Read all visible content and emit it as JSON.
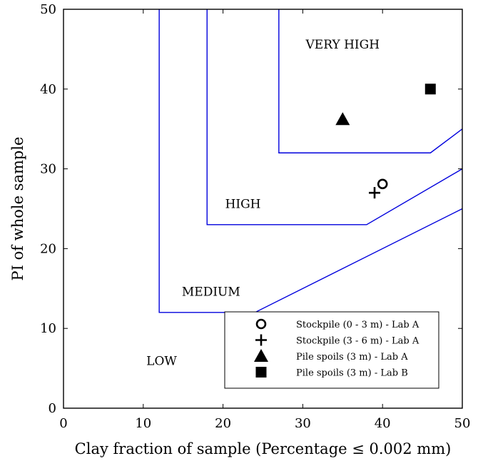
{
  "chart_data": {
    "type": "scatter",
    "title": "",
    "xlabel": "Clay fraction of sample (Percentage ≤ 0.002 mm)",
    "ylabel": "PI of whole sample",
    "xlim": [
      0,
      50
    ],
    "ylim": [
      0,
      50
    ],
    "xticks": [
      0,
      10,
      20,
      30,
      40,
      50
    ],
    "yticks": [
      0,
      10,
      20,
      30,
      40,
      50
    ],
    "grid": false,
    "boundary_color": "#0000dd",
    "boundaries": [
      {
        "name": "low-medium",
        "points": [
          [
            12,
            50
          ],
          [
            12,
            12
          ],
          [
            24,
            12
          ],
          [
            50,
            25
          ]
        ]
      },
      {
        "name": "medium-high",
        "points": [
          [
            18,
            50
          ],
          [
            18,
            23
          ],
          [
            38,
            23
          ],
          [
            50,
            30
          ]
        ]
      },
      {
        "name": "high-very-high",
        "points": [
          [
            27,
            50
          ],
          [
            27,
            32
          ],
          [
            46,
            32
          ],
          [
            50,
            35
          ]
        ]
      }
    ],
    "regions": [
      {
        "label": "VERY HIGH",
        "x": 35,
        "y": 45.5
      },
      {
        "label": "HIGH",
        "x": 22.5,
        "y": 25.5
      },
      {
        "label": "MEDIUM",
        "x": 18.5,
        "y": 14.5
      },
      {
        "label": "LOW",
        "x": 12.3,
        "y": 5.8
      }
    ],
    "series": [
      {
        "name": "Stockpile (0 - 3 m) - Lab A",
        "marker": "circle",
        "points": [
          [
            40,
            28.1
          ]
        ]
      },
      {
        "name": "Stockpile (3 - 6 m) - Lab A",
        "marker": "plus",
        "points": [
          [
            39,
            27
          ]
        ]
      },
      {
        "name": "Pile spoils (3 m) - Lab A",
        "marker": "triangle",
        "points": [
          [
            35,
            36.2
          ]
        ]
      },
      {
        "name": "Pile spoils (3 m) - Lab B",
        "marker": "square",
        "points": [
          [
            46,
            40
          ]
        ]
      }
    ],
    "legend_position": "bottom-right"
  }
}
